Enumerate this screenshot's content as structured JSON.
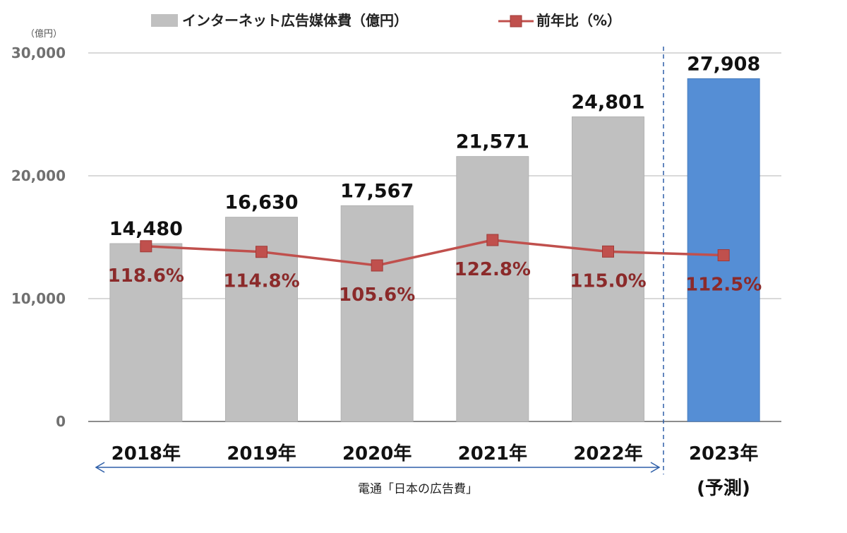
{
  "chart_data": {
    "type": "bar",
    "unit_label": "（億円）",
    "categories": [
      "2018年",
      "2019年",
      "2020年",
      "2021年",
      "2022年",
      "2023年"
    ],
    "forecast_note": "(予測)",
    "ylim": [
      0,
      30000
    ],
    "yticks": [
      0,
      10000,
      20000,
      30000
    ],
    "ytick_labels": [
      "0",
      "10,000",
      "20,000",
      "30,000"
    ],
    "series": [
      {
        "name": "インターネット広告媒体費（億円）",
        "type": "bar",
        "values": [
          14480,
          16630,
          17567,
          21571,
          24801,
          27908
        ],
        "labels": [
          "14,480",
          "16,630",
          "17,567",
          "21,571",
          "24,801",
          "27,908"
        ]
      },
      {
        "name": "前年比（%）",
        "type": "line",
        "values": [
          118.6,
          114.8,
          105.6,
          122.8,
          115.0,
          112.5
        ],
        "labels": [
          "118.6%",
          "114.8%",
          "105.6%",
          "122.8%",
          "115.0%",
          "112.5%"
        ]
      }
    ],
    "source": "電通「日本の広告費」",
    "grid": true,
    "legend_position": "top",
    "colors": {
      "bar": "#c0c0c0",
      "bar_forecast": "#558ed5",
      "line": "#c0504d",
      "divider": "#2e5fa8"
    }
  }
}
